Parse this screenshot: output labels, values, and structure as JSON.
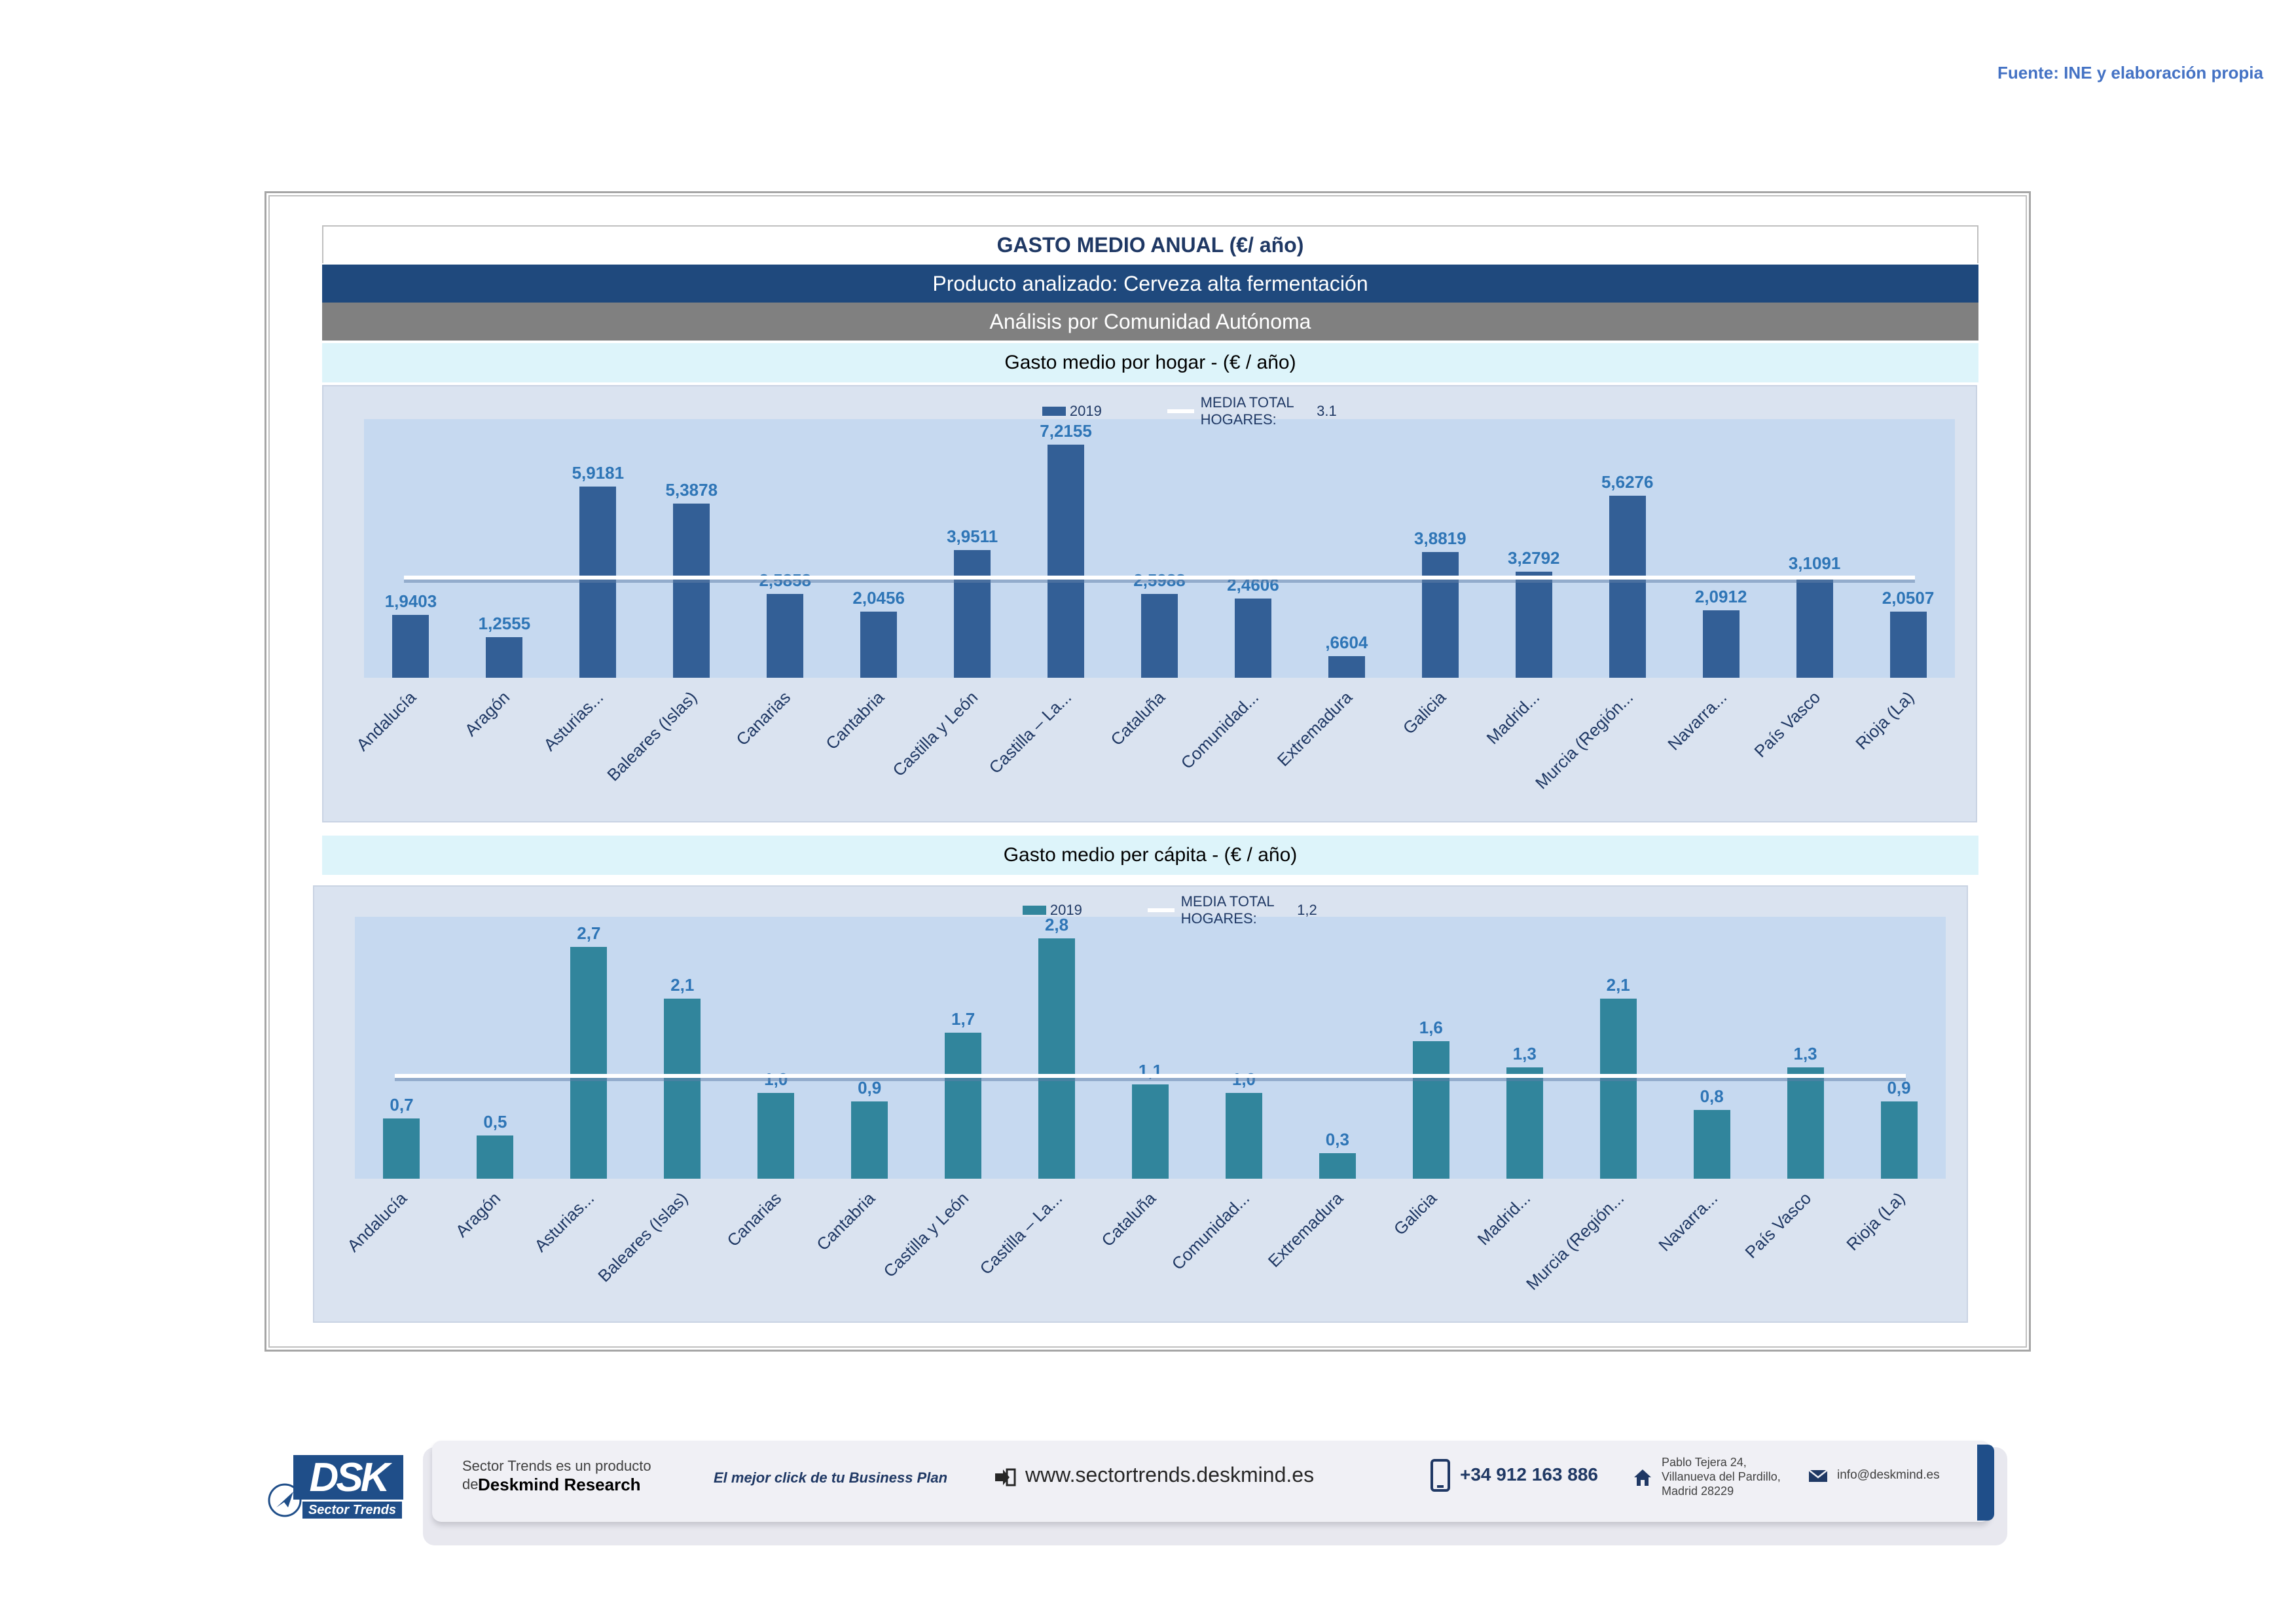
{
  "source_note": "Fuente: INE y elaboración propia",
  "header": {
    "title": "GASTO MEDIO ANUAL (€/ año)",
    "product": "Producto analizado: Cerveza alta fermentación",
    "analysis": "Análisis por Comunidad Autónoma"
  },
  "colors": {
    "bar_hogar": "#335f96",
    "bar_capita": "#31859c",
    "avg_line": "#ffffff",
    "value_label": "#2e75b6",
    "header_dark": "#1f497d",
    "header_gray": "#808080"
  },
  "chart_data": [
    {
      "type": "bar",
      "title": "Gasto medio por hogar -  (€ / año)",
      "categories": [
        "Andalucía",
        "Aragón",
        "Asturias...",
        "Baleares (Islas)",
        "Canarias",
        "Cantabria",
        "Castilla y León",
        "Castilla – La...",
        "Cataluña",
        "Comunidad...",
        "Extremadura",
        "Galicia",
        "Madrid...",
        "Murcia (Región...",
        "Navarra...",
        "País Vasco",
        "Rioja (La)"
      ],
      "series": [
        {
          "name": "2019",
          "values": [
            1.9403,
            1.2555,
            5.9181,
            5.3878,
            2.5858,
            2.0456,
            3.9511,
            7.2155,
            2.5988,
            2.4606,
            0.6604,
            3.8819,
            3.2792,
            5.6276,
            2.0912,
            3.1091,
            2.0507
          ]
        }
      ],
      "value_labels": [
        "1,9403",
        "1,2555",
        "5,9181",
        "5,3878",
        "2,5858",
        "2,0456",
        "3,9511",
        "7,2155",
        "2,5988",
        "2,4606",
        ",6604",
        "3,8819",
        "3,2792",
        "5,6276",
        "2,0912",
        "3,1091",
        "2,0507"
      ],
      "average": {
        "label": "MEDIA TOTAL  HOGARES:",
        "value_text": "3.1",
        "value": 3.1
      },
      "ylim": [
        0,
        8
      ]
    },
    {
      "type": "bar",
      "title": "Gasto medio per cápita -  (€ / año)",
      "categories": [
        "Andalucía",
        "Aragón",
        "Asturias...",
        "Baleares (Islas)",
        "Canarias",
        "Cantabria",
        "Castilla y León",
        "Castilla – La...",
        "Cataluña",
        "Comunidad...",
        "Extremadura",
        "Galicia",
        "Madrid...",
        "Murcia (Región...",
        "Navarra...",
        "País Vasco",
        "Rioja (La)"
      ],
      "series": [
        {
          "name": "2019",
          "values": [
            0.7,
            0.5,
            2.7,
            2.1,
            1.0,
            0.9,
            1.7,
            2.8,
            1.1,
            1.0,
            0.3,
            1.6,
            1.3,
            2.1,
            0.8,
            1.3,
            0.9
          ]
        }
      ],
      "value_labels": [
        "0,7",
        "0,5",
        "2,7",
        "2,1",
        "1,0",
        "0,9",
        "1,7",
        "2,8",
        "1,1",
        "1,0",
        "0,3",
        "1,6",
        "1,3",
        "2,1",
        "0,8",
        "1,3",
        "0,9"
      ],
      "average": {
        "label": "MEDIA TOTAL  HOGARES:",
        "value_text": "1,2",
        "value": 1.2
      },
      "ylim": [
        0,
        3.05
      ]
    }
  ],
  "footer": {
    "logo": "DSK",
    "logo_sub": "Sector Trends",
    "line1": "Sector Trends es un producto",
    "line2_prefix": "de",
    "line2_brand": "Deskmind Research",
    "slogan": "El mejor click de tu Business Plan",
    "web": "www.sectortrends.deskmind.es",
    "phone": "+34 912 163 886",
    "address": [
      "Pablo Tejera 24,",
      "Villanueva del Pardillo,",
      "Madrid 28229"
    ],
    "email": "info@deskmind.es"
  }
}
